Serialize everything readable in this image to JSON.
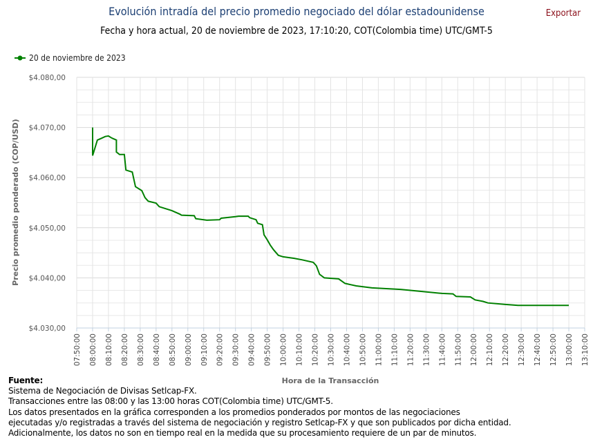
{
  "header": {
    "title": "Evolución intradía del precio promedio negociado del dólar estadounidense",
    "subtitle": "Fecha y hora actual, 20 de noviembre de 2023, 17:10:20, COT(Colombia time) UTC/GMT-5",
    "export_label": "Exportar"
  },
  "chart_data": {
    "type": "line",
    "title": "Evolución intradía del precio promedio negociado del dólar estadounidense",
    "xlabel": "Hora de la Transacción",
    "ylabel": "Precio promedio ponderado (COP/USD)",
    "ylim": [
      4030,
      4080
    ],
    "xlim": [
      "07:50:00",
      "13:10:00"
    ],
    "grid": true,
    "legend": "top-left",
    "line_color": "#008000",
    "y_ticks": [
      "$4.030,00",
      "$4.040,00",
      "$4.050,00",
      "$4.060,00",
      "$4.070,00",
      "$4.080,00"
    ],
    "x_ticks": [
      "07:50:00",
      "08:00:00",
      "08:10:00",
      "08:20:00",
      "08:30:00",
      "08:40:00",
      "08:50:00",
      "09:00:00",
      "09:10:00",
      "09:20:00",
      "09:30:00",
      "09:40:00",
      "09:50:00",
      "10:00:00",
      "10:10:00",
      "10:20:00",
      "10:30:00",
      "10:40:00",
      "10:50:00",
      "11:00:00",
      "11:10:00",
      "11:20:00",
      "11:30:00",
      "11:40:00",
      "11:50:00",
      "12:00:00",
      "12:10:00",
      "12:20:00",
      "12:30:00",
      "12:40:00",
      "12:50:00",
      "13:00:00",
      "13:10:00"
    ],
    "series": [
      {
        "name": "20 de noviembre de 2023",
        "x": [
          "08:00",
          "08:00",
          "08:03",
          "08:06",
          "08:08",
          "08:10",
          "08:12",
          "08:15",
          "08:15",
          "08:17",
          "08:20",
          "08:21",
          "08:25",
          "08:27",
          "08:31",
          "08:33",
          "08:35",
          "08:40",
          "08:42",
          "08:46",
          "08:50",
          "08:55",
          "08:56",
          "09:04",
          "09:05",
          "09:12",
          "09:20",
          "09:21",
          "09:30",
          "09:32",
          "09:38",
          "09:39",
          "09:43",
          "09:44",
          "09:47",
          "09:48",
          "09:50",
          "09:52",
          "09:54",
          "09:57",
          "10:00",
          "10:07",
          "10:12",
          "10:19",
          "10:21",
          "10:23",
          "10:26",
          "10:35",
          "10:39",
          "10:46",
          "10:56",
          "11:14",
          "11:27",
          "11:40",
          "11:47",
          "11:49",
          "11:58",
          "12:01",
          "12:06",
          "12:09",
          "12:20",
          "12:28",
          "13:00"
        ],
        "values": [
          4070.0,
          4064.4,
          4067.5,
          4067.9,
          4068.2,
          4068.3,
          4067.9,
          4067.5,
          4065.1,
          4064.6,
          4064.6,
          4061.5,
          4061.1,
          4058.2,
          4057.4,
          4056.0,
          4055.3,
          4054.9,
          4054.2,
          4053.8,
          4053.4,
          4052.7,
          4052.5,
          4052.4,
          4051.8,
          4051.5,
          4051.6,
          4051.9,
          4052.2,
          4052.3,
          4052.3,
          4052.0,
          4051.6,
          4050.9,
          4050.6,
          4048.6,
          4047.6,
          4046.5,
          4045.6,
          4044.5,
          4044.2,
          4043.9,
          4043.6,
          4043.1,
          4042.4,
          4040.7,
          4040.0,
          4039.8,
          4038.9,
          4038.4,
          4038.0,
          4037.7,
          4037.3,
          4036.9,
          4036.8,
          4036.3,
          4036.2,
          4035.6,
          4035.3,
          4035.0,
          4034.7,
          4034.5,
          4034.5
        ]
      }
    ]
  },
  "footer": {
    "source_label": "Fuente:",
    "lines": [
      "Sistema de Negociación de Divisas Setlcap-FX.",
      "Transacciones entre las 08:00 y las 13:00 horas COT(Colombia time) UTC/GMT-5.",
      "Los datos presentados en la gráfica corresponden a los promedios ponderados por montos de las negociaciones",
      "ejecutadas y/o registradas a través del sistema de negociación y registro Setlcap-FX y que son publicados por dicha entidad.",
      "Adicionalmente, los datos no son en tiempo real en la medida que su procesamiento requiere de un par de minutos."
    ]
  }
}
